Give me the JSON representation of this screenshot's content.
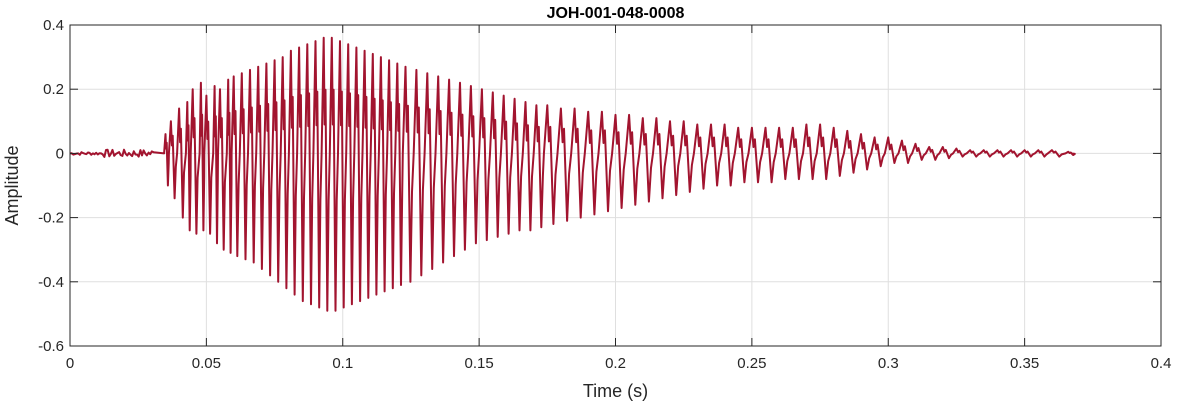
{
  "chart_data": {
    "type": "line",
    "title": "JOH-001-048-0008",
    "xlabel": "Time (s)",
    "ylabel": "Amplitude",
    "xlim": [
      0,
      0.4
    ],
    "ylim": [
      -0.6,
      0.4
    ],
    "grid": true,
    "x_ticks": [
      "0",
      "0.05",
      "0.1",
      "0.15",
      "0.2",
      "0.25",
      "0.3",
      "0.35",
      "0.4"
    ],
    "y_ticks": [
      "0.4",
      "0.2",
      "0",
      "-0.2",
      "-0.4",
      "-0.6"
    ],
    "series": [
      {
        "color": "#A2142F",
        "signal_end": 0.367,
        "x_at_peak": [
          0.035,
          0.037,
          0.04,
          0.043,
          0.045,
          0.048,
          0.05,
          0.053,
          0.055,
          0.058,
          0.06,
          0.063,
          0.066,
          0.069,
          0.072,
          0.075,
          0.078,
          0.081,
          0.084,
          0.087,
          0.09,
          0.093,
          0.096,
          0.099,
          0.102,
          0.105,
          0.108,
          0.111,
          0.114,
          0.117,
          0.12,
          0.123,
          0.127,
          0.131,
          0.135,
          0.139,
          0.143,
          0.147,
          0.151,
          0.155,
          0.159,
          0.163,
          0.167,
          0.171,
          0.175,
          0.18,
          0.185,
          0.19,
          0.195,
          0.2,
          0.205,
          0.21,
          0.215,
          0.22,
          0.225,
          0.23,
          0.235,
          0.24,
          0.245,
          0.25,
          0.255,
          0.26,
          0.265,
          0.27,
          0.275,
          0.28,
          0.285,
          0.29,
          0.295,
          0.3,
          0.305,
          0.31,
          0.315,
          0.32,
          0.325,
          0.33,
          0.335,
          0.34,
          0.345,
          0.35,
          0.355,
          0.36,
          0.366
        ],
        "peak_max": [
          0.06,
          0.1,
          0.14,
          0.16,
          0.2,
          0.22,
          0.18,
          0.21,
          0.2,
          0.23,
          0.24,
          0.25,
          0.26,
          0.27,
          0.28,
          0.29,
          0.3,
          0.32,
          0.33,
          0.34,
          0.35,
          0.36,
          0.36,
          0.35,
          0.34,
          0.33,
          0.32,
          0.31,
          0.3,
          0.29,
          0.28,
          0.27,
          0.26,
          0.25,
          0.24,
          0.23,
          0.22,
          0.21,
          0.2,
          0.19,
          0.18,
          0.17,
          0.16,
          0.15,
          0.15,
          0.14,
          0.14,
          0.13,
          0.13,
          0.12,
          0.12,
          0.11,
          0.11,
          0.1,
          0.1,
          0.09,
          0.09,
          0.09,
          0.08,
          0.08,
          0.08,
          0.08,
          0.08,
          0.09,
          0.09,
          0.08,
          0.07,
          0.06,
          0.05,
          0.05,
          0.04,
          0.03,
          0.02,
          0.02,
          0.015,
          0.01,
          0.01,
          0.01,
          0.01,
          0.01,
          0.01,
          0.01,
          0.005
        ],
        "trough_min": [
          -0.1,
          -0.14,
          -0.2,
          -0.24,
          -0.25,
          -0.24,
          -0.25,
          -0.28,
          -0.3,
          -0.31,
          -0.32,
          -0.33,
          -0.34,
          -0.36,
          -0.38,
          -0.4,
          -0.42,
          -0.44,
          -0.46,
          -0.47,
          -0.48,
          -0.49,
          -0.49,
          -0.48,
          -0.47,
          -0.46,
          -0.45,
          -0.44,
          -0.43,
          -0.42,
          -0.41,
          -0.4,
          -0.38,
          -0.36,
          -0.34,
          -0.32,
          -0.3,
          -0.28,
          -0.27,
          -0.26,
          -0.25,
          -0.24,
          -0.24,
          -0.23,
          -0.22,
          -0.21,
          -0.2,
          -0.19,
          -0.18,
          -0.17,
          -0.16,
          -0.15,
          -0.14,
          -0.13,
          -0.12,
          -0.11,
          -0.1,
          -0.1,
          -0.09,
          -0.09,
          -0.09,
          -0.08,
          -0.08,
          -0.08,
          -0.08,
          -0.07,
          -0.06,
          -0.05,
          -0.04,
          -0.03,
          -0.03,
          -0.02,
          -0.02,
          -0.015,
          -0.01,
          -0.01,
          -0.01,
          -0.01,
          -0.01,
          -0.01,
          -0.01,
          -0.01,
          -0.005
        ]
      }
    ]
  }
}
